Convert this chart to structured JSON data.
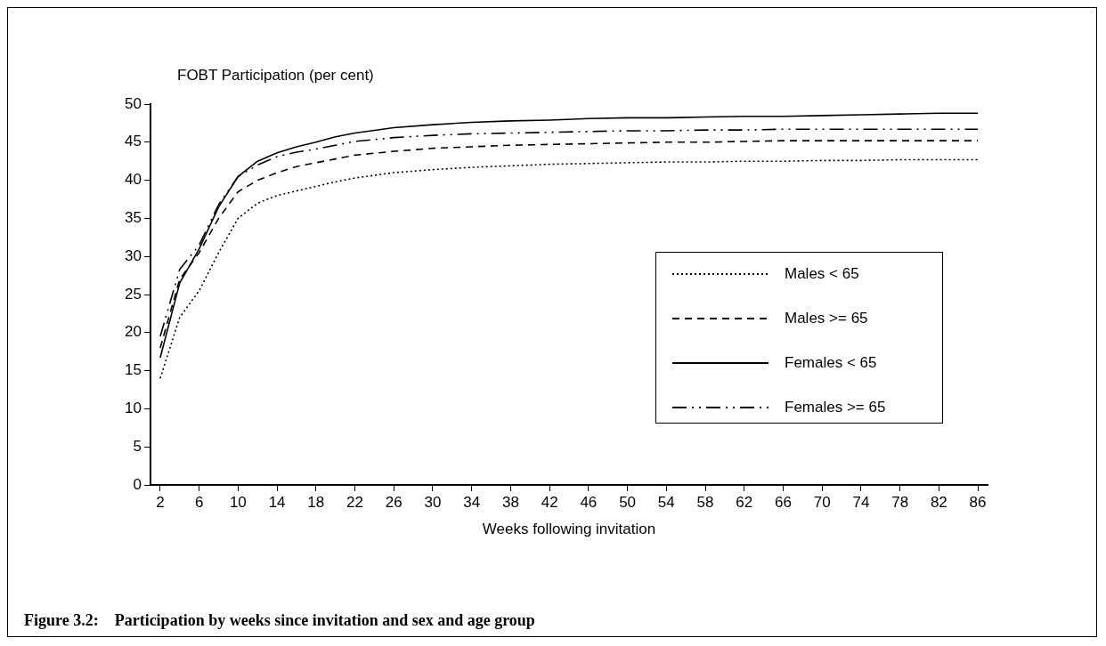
{
  "chart_data": {
    "type": "line",
    "title": "Figure 3.2:    Participation by weeks since invitation and sex and age group",
    "xlabel": "Weeks following invitation",
    "ylabel": "FOBT Participation (per cent)",
    "x": [
      2,
      4,
      6,
      8,
      10,
      12,
      14,
      16,
      18,
      20,
      22,
      26,
      30,
      34,
      38,
      42,
      46,
      50,
      54,
      58,
      62,
      66,
      70,
      74,
      78,
      82,
      86
    ],
    "xlim": [
      1,
      87
    ],
    "xticks": [
      2,
      6,
      10,
      14,
      18,
      22,
      26,
      30,
      34,
      38,
      42,
      46,
      50,
      54,
      58,
      62,
      66,
      70,
      74,
      78,
      82,
      86
    ],
    "ylim": [
      0,
      50
    ],
    "yticks": [
      0,
      5,
      10,
      15,
      20,
      25,
      30,
      35,
      40,
      45,
      50
    ],
    "grid": false,
    "legend": "right",
    "marker": "none",
    "series": [
      {
        "name": "Males < 65",
        "color": "#000000",
        "line_style": "dotted",
        "values": [
          14,
          22,
          25.5,
          30.5,
          35,
          37,
          38,
          38.6,
          39.2,
          39.8,
          40.3,
          41,
          41.4,
          41.7,
          41.9,
          42.1,
          42.2,
          42.3,
          42.4,
          42.4,
          42.5,
          42.5,
          42.6,
          42.6,
          42.7,
          42.7,
          42.7
        ]
      },
      {
        "name": "Males >= 65",
        "color": "#000000",
        "line_style": "dashed",
        "values": [
          18,
          27,
          30.5,
          35,
          38.5,
          40,
          41,
          41.8,
          42.3,
          42.8,
          43.3,
          43.8,
          44.2,
          44.4,
          44.6,
          44.7,
          44.8,
          44.9,
          45,
          45,
          45.1,
          45.2,
          45.2,
          45.2,
          45.2,
          45.2,
          45.2
        ]
      },
      {
        "name": "Females < 65",
        "color": "#000000",
        "line_style": "solid",
        "values": [
          16.7,
          26.5,
          31,
          36.5,
          40.5,
          42.5,
          43.6,
          44.4,
          45,
          45.7,
          46.2,
          46.9,
          47.3,
          47.6,
          47.8,
          47.9,
          48.1,
          48.2,
          48.2,
          48.3,
          48.4,
          48.4,
          48.5,
          48.6,
          48.7,
          48.8,
          48.8
        ]
      },
      {
        "name": "Females >= 65",
        "color": "#000000",
        "line_style": "dashdot",
        "values": [
          19.5,
          28.3,
          31.5,
          36.8,
          40.5,
          42,
          43.1,
          43.7,
          44.1,
          44.6,
          45.1,
          45.6,
          45.9,
          46.1,
          46.2,
          46.3,
          46.4,
          46.5,
          46.5,
          46.6,
          46.6,
          46.7,
          46.7,
          46.7,
          46.7,
          46.7,
          46.7
        ]
      }
    ]
  }
}
